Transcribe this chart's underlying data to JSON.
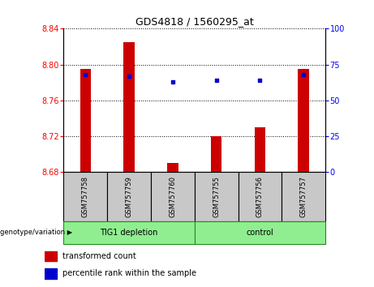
{
  "title": "GDS4818 / 1560295_at",
  "samples": [
    "GSM757758",
    "GSM757759",
    "GSM757760",
    "GSM757755",
    "GSM757756",
    "GSM757757"
  ],
  "transformed_counts": [
    8.795,
    8.825,
    8.69,
    8.72,
    8.73,
    8.795
  ],
  "percentile_ranks": [
    68,
    67,
    63,
    64,
    64,
    68
  ],
  "ylim_left": [
    8.68,
    8.84
  ],
  "ylim_right": [
    0,
    100
  ],
  "yticks_left": [
    8.68,
    8.72,
    8.76,
    8.8,
    8.84
  ],
  "yticks_right": [
    0,
    25,
    50,
    75,
    100
  ],
  "bar_color": "#cc0000",
  "dot_color": "#0000cc",
  "bar_width": 0.25,
  "base_value": 8.68,
  "tick_area_color": "#c8c8c8",
  "group_color": "#90ee90",
  "group_border_color": "#228B22",
  "groups": [
    {
      "label": "TIG1 depletion",
      "start": 0,
      "end": 3
    },
    {
      "label": "control",
      "start": 3,
      "end": 6
    }
  ],
  "title_fontsize": 9,
  "axis_fontsize": 7,
  "legend_fontsize": 7,
  "sample_fontsize": 6
}
